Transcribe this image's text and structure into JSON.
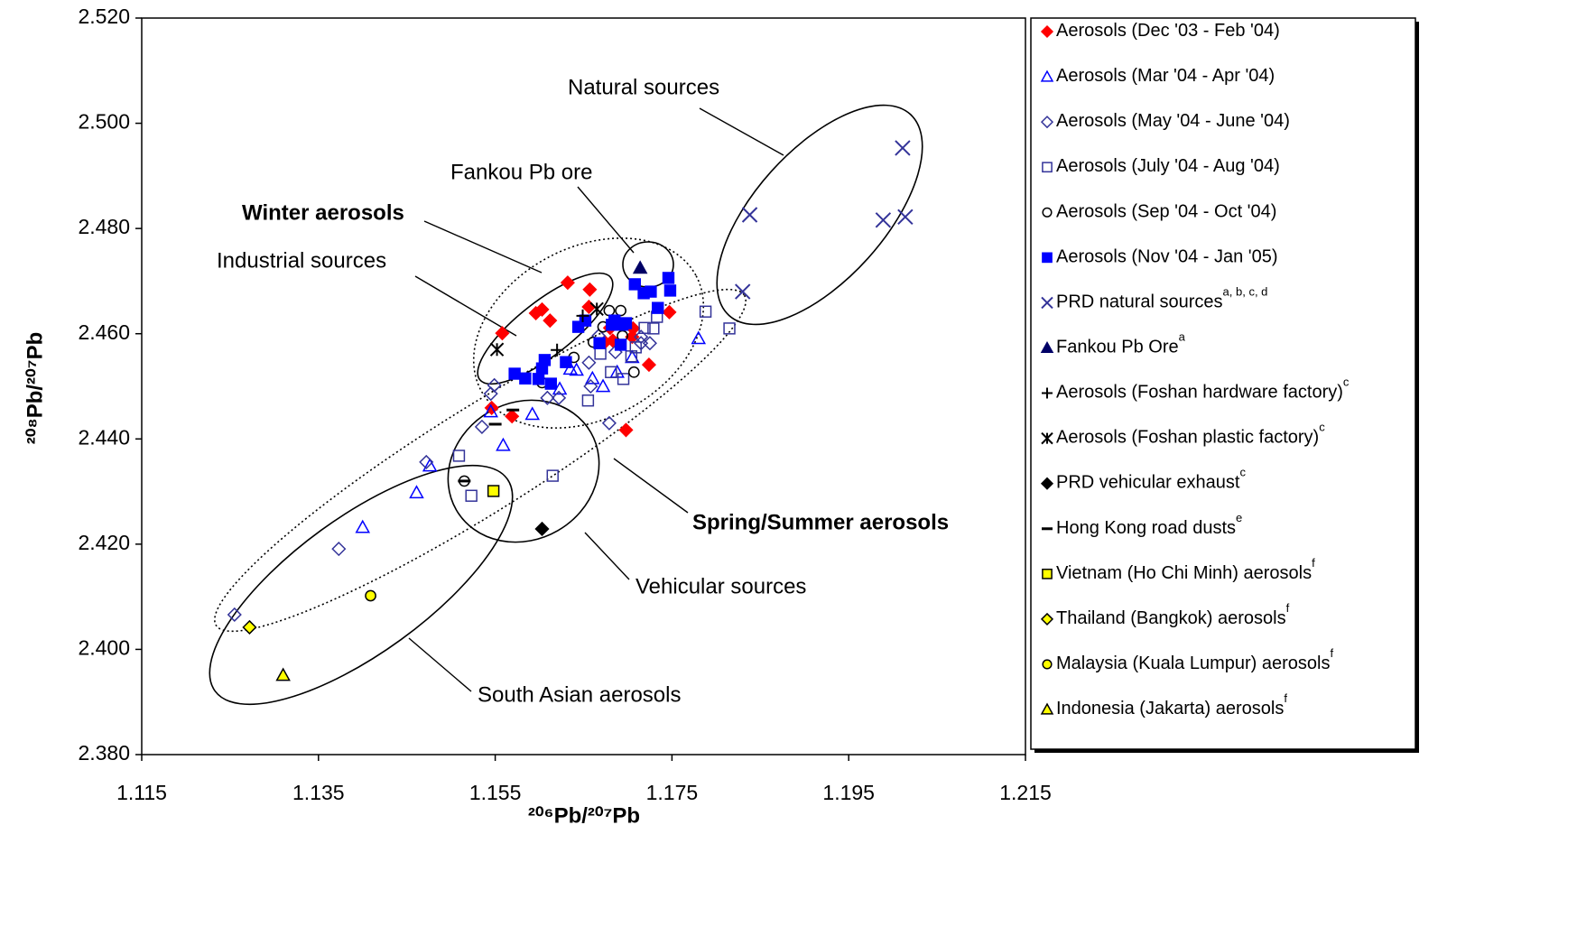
{
  "chart_data": {
    "type": "scatter",
    "xlabel": "²⁰⁶Pb/²⁰⁷Pb",
    "ylabel": "²⁰⁸Pb/²⁰⁷Pb",
    "xlim": [
      1.115,
      1.215
    ],
    "xticks": [
      1.115,
      1.135,
      1.155,
      1.175,
      1.195,
      1.215
    ],
    "ylim": [
      2.38,
      2.52
    ],
    "yticks": [
      {
        "value": 2.38,
        "label": "2.380"
      },
      {
        "value": 2.4,
        "label": "2.400"
      },
      {
        "value": 2.42,
        "label": "2.420"
      },
      {
        "value": 2.44,
        "label": "2.440"
      },
      {
        "value": 2.46,
        "label": "2.460"
      },
      {
        "value": 2.48,
        "label": "2.480"
      },
      {
        "value": 2.5,
        "label": "2.500"
      },
      {
        "value": 2.52,
        "label": "2.520"
      }
    ],
    "grid": false,
    "legend": "right",
    "annotations": [
      "Natural sources",
      "Fankou Pb ore",
      "Winter aerosols",
      "Industrial sources",
      "Spring/Summer aerosols",
      "Vehicular sources",
      "South Asian aerosols"
    ],
    "series": [
      {
        "name": "Aerosols (Dec '03 - Feb '04)",
        "marker": "diamond",
        "filled": true,
        "color": "#ff0000",
        "x": [
          1.1632,
          1.1603,
          1.1596,
          1.1612,
          1.1657,
          1.1656,
          1.1558,
          1.168,
          1.1706,
          1.1705,
          1.1674,
          1.1683,
          1.1747,
          1.1724,
          1.1698,
          1.1546,
          1.1569
        ],
        "values": [
          2.4697,
          2.4646,
          2.4639,
          2.4625,
          2.4684,
          2.4651,
          2.4601,
          2.4611,
          2.461,
          2.4594,
          2.4584,
          2.4587,
          2.4641,
          2.4541,
          2.4417,
          2.4459,
          2.4443
        ]
      },
      {
        "name": "Aerosols (Mar '04 - Apr '04)",
        "marker": "triangle",
        "filled": false,
        "color": "#0000ff",
        "x": [
          1.1545,
          1.1559,
          1.1592,
          1.1623,
          1.1635,
          1.166,
          1.1672,
          1.1705,
          1.178,
          1.1476,
          1.1461,
          1.14,
          1.1642,
          1.1688
        ],
        "values": [
          2.4452,
          2.4388,
          2.4447,
          2.4495,
          2.4533,
          2.4515,
          2.45,
          2.4555,
          2.4591,
          2.4349,
          2.4298,
          2.4232,
          2.4531,
          2.4527
        ]
      },
      {
        "name": "Aerosols (May '04 - June '04)",
        "marker": "diamond",
        "filled": false,
        "color": "#333399",
        "x": [
          1.1545,
          1.1549,
          1.1535,
          1.1472,
          1.1373,
          1.1255,
          1.1609,
          1.1622,
          1.1658,
          1.1679,
          1.1715,
          1.1725,
          1.1715,
          1.1656,
          1.1667,
          1.1686
        ],
        "values": [
          2.4486,
          2.4502,
          2.4423,
          2.4356,
          2.4191,
          2.4066,
          2.4478,
          2.4478,
          2.45,
          2.443,
          2.4582,
          2.4582,
          2.4594,
          2.4545,
          2.4596,
          2.4565
        ]
      },
      {
        "name": "Aerosols (July '04 - Aug '04)",
        "marker": "square",
        "filled": false,
        "color": "#333399",
        "x": [
          1.1509,
          1.1523,
          1.1615,
          1.1655,
          1.1681,
          1.1695,
          1.1704,
          1.1729,
          1.1733,
          1.1788,
          1.1815,
          1.1669,
          1.1709,
          1.1719
        ],
        "values": [
          2.4368,
          2.4292,
          2.433,
          2.4473,
          2.4527,
          2.4514,
          2.4557,
          2.461,
          2.4632,
          2.4642,
          2.461,
          2.4562,
          2.4574,
          2.4611
        ]
      },
      {
        "name": "Aerosols (Sep '04 - Oct '04)",
        "marker": "circle",
        "filled": false,
        "color": "#000000",
        "x": [
          1.1603,
          1.1639,
          1.1661,
          1.1672,
          1.1679,
          1.1692,
          1.1694,
          1.1707,
          1.1515
        ],
        "values": [
          2.4507,
          2.4555,
          2.4584,
          2.4613,
          2.4644,
          2.4644,
          2.4596,
          2.4527,
          2.432
        ]
      },
      {
        "name": "Aerosols (Nov '04 - Jan '05)",
        "marker": "square",
        "filled": true,
        "color": "#0000ff",
        "x": [
          1.1572,
          1.1584,
          1.1599,
          1.1603,
          1.1606,
          1.1613,
          1.163,
          1.1644,
          1.1652,
          1.1668,
          1.1682,
          1.1685,
          1.1694,
          1.1698,
          1.1692,
          1.1708,
          1.1718,
          1.1726,
          1.1734,
          1.1746,
          1.1748
        ],
        "values": [
          2.4524,
          2.4515,
          2.4514,
          2.4534,
          2.455,
          2.4505,
          2.4546,
          2.4613,
          2.4625,
          2.4582,
          2.4617,
          2.4625,
          2.4617,
          2.462,
          2.4579,
          2.4694,
          2.4677,
          2.468,
          2.4649,
          2.4706,
          2.4682
        ]
      },
      {
        "name": "PRD natural sources",
        "note": "a, b, c, d",
        "marker": "x",
        "filled": false,
        "color": "#333399",
        "x": [
          1.1838,
          1.1989,
          1.2011,
          1.2014,
          1.183
        ],
        "values": [
          2.4826,
          2.4816,
          2.4953,
          2.4822,
          2.468
        ]
      },
      {
        "name": "Fankou Pb Ore",
        "note": "a",
        "marker": "triangle",
        "filled": true,
        "color": "#000066",
        "x": [
          1.1714
        ],
        "values": [
          2.4725
        ]
      },
      {
        "name": "Aerosols (Foshan hardware factory)",
        "note": "c",
        "marker": "plus",
        "filled": false,
        "color": "#000000",
        "x": [
          1.162,
          1.1649
        ],
        "values": [
          2.4569,
          2.4634
        ]
      },
      {
        "name": "Aerosols (Foshan plastic factory)",
        "note": "c",
        "marker": "star",
        "filled": false,
        "color": "#000000",
        "x": [
          1.1552,
          1.1665
        ],
        "values": [
          2.457,
          2.4647
        ]
      },
      {
        "name": "PRD vehicular exhaust",
        "note": "c",
        "marker": "diamond",
        "filled": true,
        "color": "#000000",
        "x": [
          1.1603
        ],
        "values": [
          2.4229
        ]
      },
      {
        "name": "Hong Kong road dusts",
        "note": "e",
        "marker": "dash",
        "filled": false,
        "color": "#000000",
        "x": [
          1.155,
          1.157,
          1.1515
        ],
        "values": [
          2.4428,
          2.4455,
          2.432
        ]
      },
      {
        "name": "Vietnam (Ho Chi Minh) aerosols",
        "note": "f",
        "marker": "square",
        "filled": true,
        "color": "#ffff00",
        "edgecolor": "#000000",
        "x": [
          1.1548
        ],
        "values": [
          2.4301
        ]
      },
      {
        "name": "Thailand (Bangkok) aerosols",
        "note": "f",
        "marker": "diamond",
        "filled": true,
        "color": "#ffff00",
        "edgecolor": "#000000",
        "x": [
          1.1272
        ],
        "values": [
          2.4042
        ]
      },
      {
        "name": "Malaysia (Kuala Lumpur) aerosols",
        "note": "f",
        "marker": "circle",
        "filled": true,
        "color": "#ffff00",
        "edgecolor": "#000000",
        "x": [
          1.1409
        ],
        "values": [
          2.4102
        ]
      },
      {
        "name": "Indonesia (Jakarta) aerosols",
        "note": "f",
        "marker": "triangle",
        "filled": true,
        "color": "#ffff00",
        "edgecolor": "#000000",
        "x": [
          1.131
        ],
        "values": [
          2.3951
        ]
      }
    ]
  }
}
